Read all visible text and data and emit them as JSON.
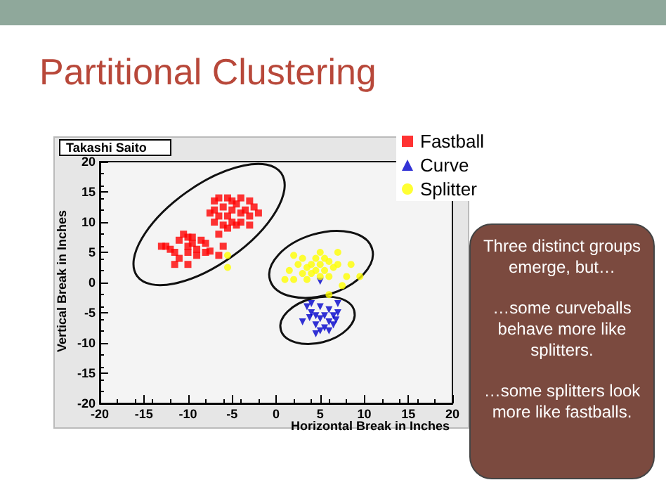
{
  "chart_data": {
    "type": "scatter",
    "title": "Partitional Clustering",
    "subtitle": "Takashi Saito",
    "xlabel": "Horizontal Break in Inches",
    "ylabel": "Vertical Break in Inches",
    "xlim": [
      -20,
      20
    ],
    "ylim": [
      -20,
      20
    ],
    "xticks": [
      -20,
      -15,
      -10,
      -5,
      0,
      5,
      10,
      15,
      20
    ],
    "yticks": [
      -20,
      -15,
      -10,
      -5,
      0,
      5,
      10,
      15,
      20
    ],
    "grid": false,
    "legend": "top right",
    "annotations": [
      "Three distinct groups emerge, but…",
      "…some curveballs behave more like splitters.",
      "…some splitters look more like fastballs."
    ],
    "series": [
      {
        "name": "Fastball",
        "color": "#ff0000",
        "marker": "square",
        "x": [
          -13,
          -12.5,
          -11.5,
          -11,
          -10.5,
          -10,
          -10,
          -10,
          -9.5,
          -9,
          -9,
          -11,
          -10,
          -12,
          -8,
          -8.5,
          -9.5,
          -7.5,
          -11.5,
          -8,
          -7,
          -6.5,
          -5.5,
          -4,
          -3,
          -7,
          -6.5,
          -6,
          -5.5,
          -5,
          -5,
          -4.5,
          -4,
          -4,
          -3.5,
          -3,
          -6,
          -5.5,
          -7,
          -2,
          -6.5,
          -6,
          -6.5,
          -3,
          -4.5,
          -2.5,
          -7.5,
          -5
        ],
        "values": [
          6,
          6,
          5,
          7,
          8,
          7.5,
          6,
          5,
          6.5,
          5.5,
          4.5,
          4,
          3,
          5.5,
          5,
          7,
          7.5,
          5.2,
          3,
          6.5,
          13.5,
          14,
          14,
          14,
          13.5,
          12,
          11,
          12.5,
          11,
          12,
          10,
          13,
          11.5,
          10,
          12,
          11,
          9.5,
          9,
          10,
          11.5,
          8,
          6,
          4.5,
          9.5,
          9.5,
          12.5,
          11.5,
          13.5
        ]
      },
      {
        "name": "Curve",
        "color": "#0000cc",
        "marker": "triangle",
        "x": [
          3,
          3.5,
          4,
          4,
          4.5,
          4.5,
          5,
          5,
          5,
          5.5,
          5.5,
          6,
          6,
          6.5,
          6.5,
          7,
          7,
          4.5,
          6,
          5,
          3.8,
          6.8
        ],
        "values": [
          -6.5,
          -4,
          -5,
          -3.5,
          -5.5,
          -7,
          -8,
          -6,
          -4,
          -7.5,
          -5.5,
          -6.5,
          -4.5,
          -5.5,
          -7,
          -5,
          -3.5,
          -8.5,
          -8,
          0.2,
          -5.8,
          -6.2
        ]
      },
      {
        "name": "Splitter",
        "color": "#ffff00",
        "marker": "circle",
        "x": [
          -5.5,
          -5.5,
          1,
          1.5,
          2,
          2.5,
          3,
          3,
          3.5,
          3.5,
          4,
          4,
          4.5,
          4.5,
          5,
          5,
          5,
          5.5,
          5.5,
          6,
          6,
          6.5,
          7,
          7,
          8,
          7.5,
          9.5,
          8.5,
          2,
          6
        ],
        "values": [
          4.5,
          2.5,
          0.5,
          2,
          0.5,
          3,
          1.5,
          4,
          2.5,
          0.5,
          3,
          1.5,
          4,
          2,
          5,
          3,
          1,
          2,
          4,
          3.5,
          1,
          2.5,
          3,
          5,
          1,
          -0.5,
          1,
          3,
          4.5,
          -2
        ]
      }
    ]
  }
}
